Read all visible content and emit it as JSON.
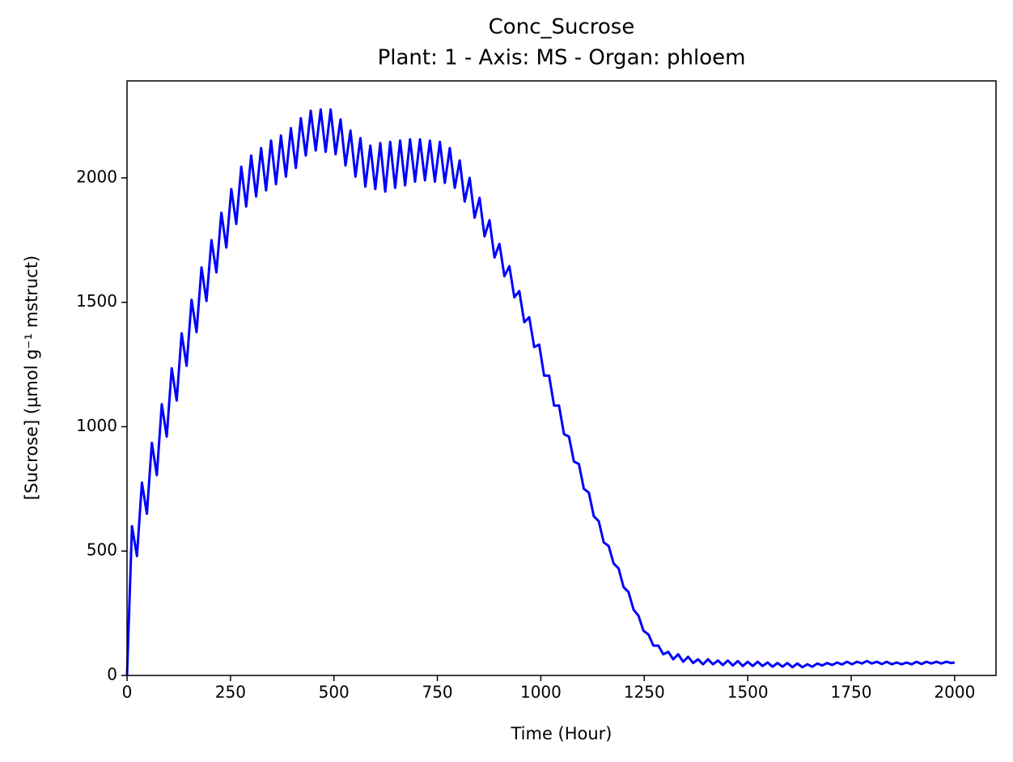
{
  "chart_data": {
    "type": "line",
    "title": "Conc_Sucrose",
    "subtitle": "Plant: 1 - Axis: MS - Organ: phloem",
    "x_label": "Time (Hour)",
    "y_label": "[Sucrose] (µmol g⁻¹ mstruct)",
    "color": "#0000ff",
    "x": [
      0,
      12,
      24,
      36,
      48,
      60,
      72,
      84,
      96,
      108,
      120,
      132,
      144,
      156,
      168,
      180,
      192,
      204,
      216,
      228,
      240,
      252,
      264,
      276,
      288,
      300,
      312,
      324,
      336,
      348,
      360,
      372,
      384,
      396,
      408,
      420,
      432,
      444,
      456,
      468,
      480,
      492,
      504,
      516,
      528,
      540,
      552,
      564,
      576,
      588,
      600,
      612,
      624,
      636,
      648,
      660,
      672,
      684,
      696,
      708,
      720,
      732,
      744,
      756,
      768,
      780,
      792,
      804,
      816,
      828,
      840,
      852,
      864,
      876,
      888,
      900,
      912,
      924,
      936,
      948,
      960,
      972,
      984,
      996,
      1008,
      1020,
      1032,
      1044,
      1056,
      1068,
      1080,
      1092,
      1104,
      1116,
      1128,
      1140,
      1152,
      1164,
      1176,
      1188,
      1200,
      1212,
      1224,
      1236,
      1248,
      1260,
      1272,
      1284,
      1296,
      1308,
      1320,
      1332,
      1344,
      1356,
      1368,
      1380,
      1392,
      1404,
      1416,
      1428,
      1440,
      1452,
      1464,
      1476,
      1488,
      1500,
      1512,
      1524,
      1536,
      1548,
      1560,
      1572,
      1584,
      1596,
      1608,
      1620,
      1632,
      1644,
      1656,
      1668,
      1680,
      1692,
      1704,
      1716,
      1728,
      1740,
      1752,
      1764,
      1776,
      1788,
      1800,
      1812,
      1824,
      1836,
      1848,
      1860,
      1872,
      1884,
      1896,
      1908,
      1920,
      1932,
      1944,
      1956,
      1968,
      1980,
      1992,
      2000
    ],
    "values": [
      0,
      600,
      480,
      775,
      650,
      935,
      805,
      1090,
      960,
      1235,
      1105,
      1375,
      1245,
      1510,
      1380,
      1640,
      1505,
      1750,
      1620,
      1860,
      1720,
      1955,
      1815,
      2045,
      1885,
      2090,
      1925,
      2120,
      1950,
      2150,
      1975,
      2170,
      2005,
      2200,
      2040,
      2240,
      2090,
      2270,
      2110,
      2275,
      2105,
      2275,
      2095,
      2235,
      2050,
      2190,
      2005,
      2160,
      1965,
      2130,
      1955,
      2140,
      1945,
      2145,
      1960,
      2150,
      1970,
      2155,
      1985,
      2155,
      1990,
      2150,
      1985,
      2145,
      1980,
      2120,
      1960,
      2070,
      1905,
      2000,
      1840,
      1920,
      1765,
      1830,
      1680,
      1735,
      1605,
      1645,
      1520,
      1545,
      1420,
      1440,
      1320,
      1330,
      1205,
      1205,
      1085,
      1085,
      970,
      960,
      860,
      850,
      750,
      735,
      640,
      620,
      535,
      520,
      450,
      430,
      355,
      335,
      265,
      240,
      180,
      165,
      120,
      120,
      85,
      95,
      65,
      85,
      55,
      75,
      50,
      65,
      45,
      65,
      45,
      60,
      42,
      60,
      40,
      58,
      38,
      55,
      38,
      55,
      38,
      52,
      35,
      50,
      35,
      50,
      33,
      48,
      33,
      45,
      35,
      48,
      40,
      50,
      42,
      52,
      44,
      55,
      45,
      55,
      48,
      58,
      48,
      55,
      46,
      55,
      45,
      52,
      45,
      52,
      45,
      55,
      46,
      55,
      48,
      55,
      48,
      55,
      50,
      52
    ],
    "xlim": [
      0,
      2100
    ],
    "ylim": [
      0,
      2390
    ],
    "xticks": [
      0,
      250,
      500,
      750,
      1000,
      1250,
      1500,
      1750,
      2000
    ],
    "yticks": [
      0,
      500,
      1000,
      1500,
      2000
    ],
    "grid": false
  }
}
